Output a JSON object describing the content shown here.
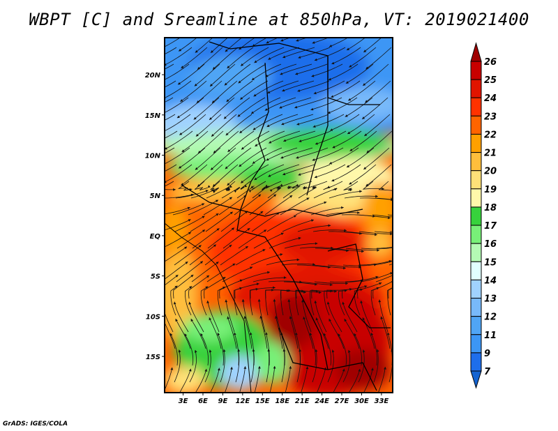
{
  "title": "WBPT [C] and Sreamline at 850hPa, VT: 2019021400",
  "credit": "GrADS: IGES/COLA",
  "map": {
    "lat_labels": [
      {
        "lat": 20,
        "label": "20N"
      },
      {
        "lat": 15,
        "label": "15N"
      },
      {
        "lat": 10,
        "label": "10N"
      },
      {
        "lat": 5,
        "label": "5N"
      },
      {
        "lat": 0,
        "label": "EQ"
      },
      {
        "lat": -5,
        "label": "5S"
      },
      {
        "lat": -10,
        "label": "10S"
      },
      {
        "lat": -15,
        "label": "15S"
      }
    ],
    "lon_labels": [
      {
        "lon": 3,
        "label": "3E"
      },
      {
        "lon": 6,
        "label": "6E"
      },
      {
        "lon": 9,
        "label": "9E"
      },
      {
        "lon": 12,
        "label": "12E"
      },
      {
        "lon": 15,
        "label": "15E"
      },
      {
        "lon": 18,
        "label": "18E"
      },
      {
        "lon": 21,
        "label": "21E"
      },
      {
        "lon": 24,
        "label": "24E"
      },
      {
        "lon": 27,
        "label": "27E"
      },
      {
        "lon": 30,
        "label": "30E"
      },
      {
        "lon": 33,
        "label": "33E"
      }
    ],
    "lon_range": [
      0.2,
      34.7
    ],
    "lat_range": [
      -19.5,
      24.6
    ]
  },
  "colorbar": {
    "labels": [
      "26",
      "25",
      "24",
      "23",
      "22",
      "21",
      "20",
      "19",
      "18",
      "17",
      "16",
      "15",
      "14",
      "13",
      "12",
      "11",
      "9",
      "7"
    ],
    "colors": [
      "#a00000",
      "#c80000",
      "#e11400",
      "#ff3200",
      "#ff6400",
      "#ffa000",
      "#ffbe3c",
      "#ffe178",
      "#fff8aa",
      "#37d23c",
      "#78f078",
      "#b4fab4",
      "#e1ffff",
      "#a0d2ff",
      "#78b9fa",
      "#50a5f5",
      "#3c96f5",
      "#1e6eeb",
      "#1464d2"
    ]
  }
}
